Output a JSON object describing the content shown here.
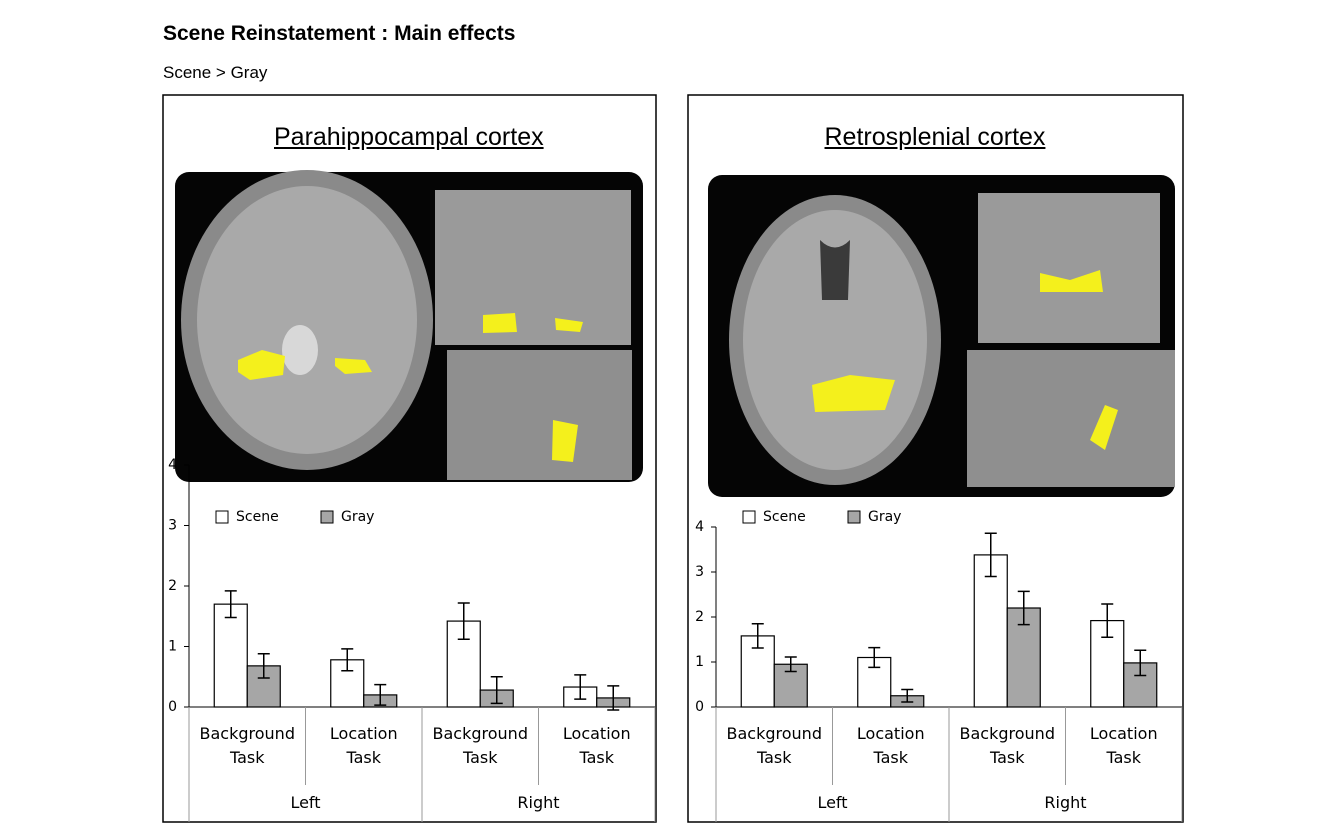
{
  "header": {
    "title": "Scene Reinstatement : Main effects",
    "subtitle": "Scene > Gray"
  },
  "chart_data": [
    {
      "type": "bar",
      "title": "Parahippocampal cortex",
      "categories": [
        "Background Task",
        "Location Task",
        "Background Task",
        "Location Task"
      ],
      "group_labels": [
        "Left",
        "Right"
      ],
      "series": [
        {
          "name": "Scene",
          "color": "#ffffff",
          "values": [
            1.7,
            0.78,
            1.42,
            0.33
          ],
          "errors": [
            0.22,
            0.18,
            0.3,
            0.2
          ]
        },
        {
          "name": "Gray",
          "color": "#a6a6a6",
          "values": [
            0.68,
            0.2,
            0.28,
            0.15
          ],
          "errors": [
            0.2,
            0.17,
            0.22,
            0.2
          ]
        }
      ],
      "ylim": [
        0,
        4
      ],
      "yticks": [
        0,
        1,
        2,
        3,
        4
      ]
    },
    {
      "type": "bar",
      "title": "Retrosplenial cortex",
      "categories": [
        "Background Task",
        "Location Task",
        "Background Task",
        "Location Task"
      ],
      "group_labels": [
        "Left",
        "Right"
      ],
      "series": [
        {
          "name": "Scene",
          "color": "#ffffff",
          "values": [
            1.58,
            1.1,
            3.38,
            1.92
          ],
          "errors": [
            0.27,
            0.22,
            0.48,
            0.37
          ]
        },
        {
          "name": "Gray",
          "color": "#a6a6a6",
          "values": [
            0.95,
            0.25,
            2.2,
            0.98
          ],
          "errors": [
            0.16,
            0.14,
            0.37,
            0.28
          ]
        }
      ],
      "ylim": [
        0,
        4
      ],
      "yticks": [
        0,
        1,
        2,
        3,
        4
      ]
    }
  ]
}
